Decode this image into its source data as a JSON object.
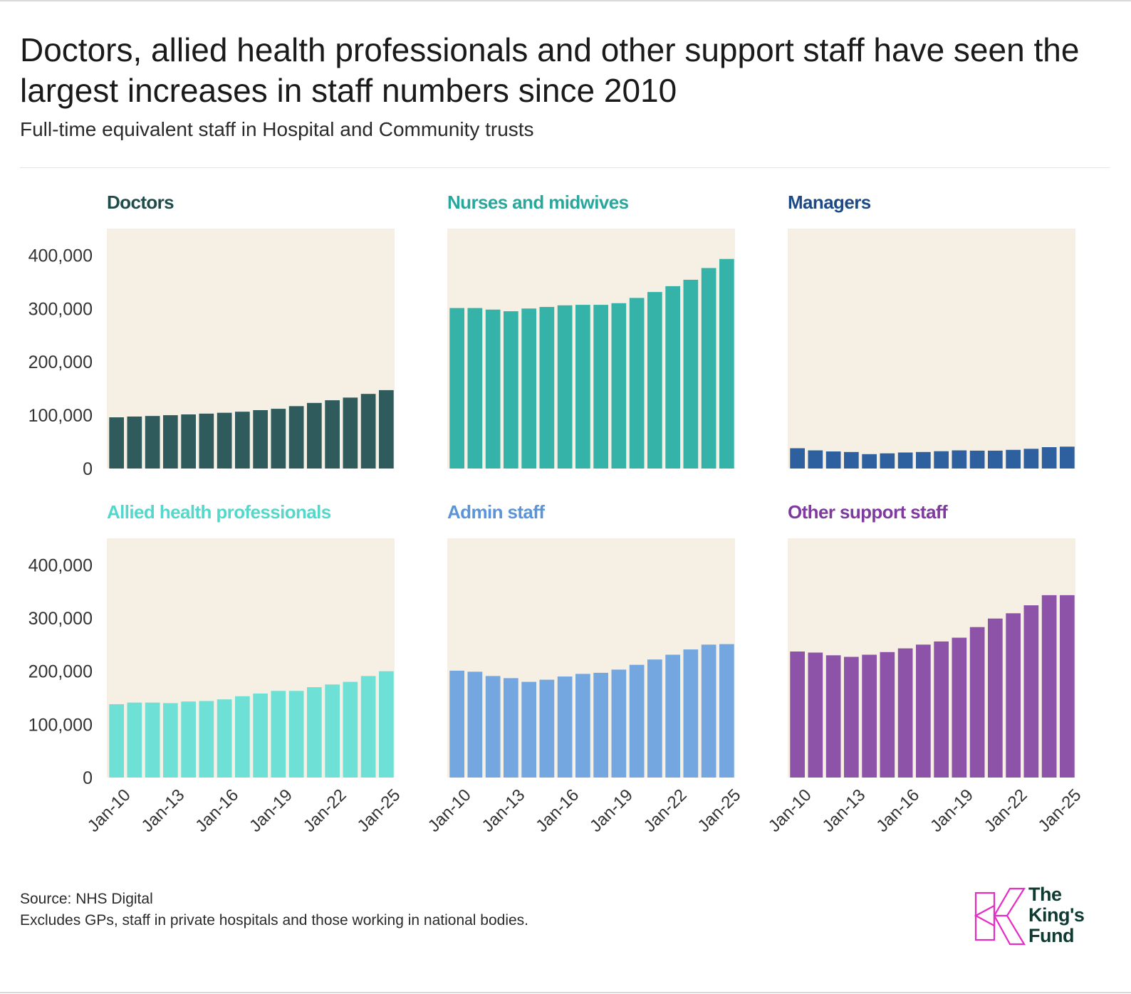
{
  "header": {
    "title": "Doctors, allied health professionals and other support staff have seen the largest increases in staff numbers since 2010",
    "subtitle": "Full-time equivalent staff in Hospital and Community trusts"
  },
  "footer": {
    "source": "Source: NHS Digital",
    "note": "Excludes GPs, staff in private hospitals and those working in national bodies."
  },
  "logo": {
    "line1": "The",
    "line2": "King's",
    "line3": "Fund",
    "icon": "kings-fund-k-logo",
    "color": "#e62cc4"
  },
  "panel_background": "#f5efe4",
  "chart_data": [
    {
      "type": "bar",
      "title": "Doctors",
      "color": "#2f5b5c",
      "title_color": "#1f4c4a",
      "x": [
        "Jan-10",
        "Jan-11",
        "Jan-12",
        "Jan-13",
        "Jan-14",
        "Jan-15",
        "Jan-16",
        "Jan-17",
        "Jan-18",
        "Jan-19",
        "Jan-20",
        "Jan-21",
        "Jan-22",
        "Jan-23",
        "Jan-24",
        "Jan-25"
      ],
      "x_tick_labels": [
        "Jan-10",
        "Jan-13",
        "Jan-16",
        "Jan-19",
        "Jan-22",
        "Jan-25"
      ],
      "values": [
        96000,
        97500,
        98500,
        100000,
        101500,
        103000,
        104500,
        106500,
        109500,
        112000,
        117000,
        123000,
        128000,
        133000,
        140000,
        147000
      ],
      "ylim": [
        0,
        450000
      ],
      "y_ticks": [
        0,
        100000,
        200000,
        300000,
        400000
      ],
      "y_tick_labels": [
        "0",
        "100,000",
        "200,000",
        "300,000",
        "400,000"
      ]
    },
    {
      "type": "bar",
      "title": "Nurses and midwives",
      "color": "#35b3a8",
      "title_color": "#2aa79c",
      "x": [
        "Jan-10",
        "Jan-11",
        "Jan-12",
        "Jan-13",
        "Jan-14",
        "Jan-15",
        "Jan-16",
        "Jan-17",
        "Jan-18",
        "Jan-19",
        "Jan-20",
        "Jan-21",
        "Jan-22",
        "Jan-23",
        "Jan-24",
        "Jan-25"
      ],
      "x_tick_labels": [
        "Jan-10",
        "Jan-13",
        "Jan-16",
        "Jan-19",
        "Jan-22",
        "Jan-25"
      ],
      "values": [
        301000,
        301000,
        298000,
        295000,
        300000,
        303000,
        306000,
        307000,
        307000,
        310000,
        320000,
        331000,
        342000,
        354000,
        376000,
        393000
      ],
      "ylim": [
        0,
        450000
      ],
      "y_ticks": [
        0,
        100000,
        200000,
        300000,
        400000
      ],
      "y_tick_labels": [
        "0",
        "100,000",
        "200,000",
        "300,000",
        "400,000"
      ]
    },
    {
      "type": "bar",
      "title": "Managers",
      "color": "#2e5f9e",
      "title_color": "#1d4a86",
      "x": [
        "Jan-10",
        "Jan-11",
        "Jan-12",
        "Jan-13",
        "Jan-14",
        "Jan-15",
        "Jan-16",
        "Jan-17",
        "Jan-18",
        "Jan-19",
        "Jan-20",
        "Jan-21",
        "Jan-22",
        "Jan-23",
        "Jan-24",
        "Jan-25"
      ],
      "x_tick_labels": [
        "Jan-10",
        "Jan-13",
        "Jan-16",
        "Jan-19",
        "Jan-22",
        "Jan-25"
      ],
      "values": [
        38000,
        34000,
        32000,
        31000,
        27000,
        28500,
        30000,
        31000,
        32500,
        34000,
        33500,
        33500,
        35000,
        37000,
        40000,
        41000
      ],
      "ylim": [
        0,
        450000
      ],
      "y_ticks": [
        0,
        100000,
        200000,
        300000,
        400000
      ],
      "y_tick_labels": [
        "0",
        "100,000",
        "200,000",
        "300,000",
        "400,000"
      ]
    },
    {
      "type": "bar",
      "title": "Allied health professionals",
      "color": "#6fe0d5",
      "title_color": "#55d8cb",
      "x": [
        "Jan-10",
        "Jan-11",
        "Jan-12",
        "Jan-13",
        "Jan-14",
        "Jan-15",
        "Jan-16",
        "Jan-17",
        "Jan-18",
        "Jan-19",
        "Jan-20",
        "Jan-21",
        "Jan-22",
        "Jan-23",
        "Jan-24",
        "Jan-25"
      ],
      "x_tick_labels": [
        "Jan-10",
        "Jan-13",
        "Jan-16",
        "Jan-19",
        "Jan-22",
        "Jan-25"
      ],
      "values": [
        138000,
        141000,
        141000,
        140000,
        143000,
        144000,
        147000,
        153000,
        158000,
        163000,
        163000,
        170000,
        175000,
        180000,
        191000,
        200000
      ],
      "ylim": [
        0,
        450000
      ],
      "y_ticks": [
        0,
        100000,
        200000,
        300000,
        400000
      ],
      "y_tick_labels": [
        "0",
        "100,000",
        "200,000",
        "300,000",
        "400,000"
      ]
    },
    {
      "type": "bar",
      "title": "Admin staff",
      "color": "#74a7e0",
      "title_color": "#5b95d8",
      "x": [
        "Jan-10",
        "Jan-11",
        "Jan-12",
        "Jan-13",
        "Jan-14",
        "Jan-15",
        "Jan-16",
        "Jan-17",
        "Jan-18",
        "Jan-19",
        "Jan-20",
        "Jan-21",
        "Jan-22",
        "Jan-23",
        "Jan-24",
        "Jan-25"
      ],
      "x_tick_labels": [
        "Jan-10",
        "Jan-13",
        "Jan-16",
        "Jan-19",
        "Jan-22",
        "Jan-25"
      ],
      "values": [
        201000,
        199000,
        191000,
        187000,
        180000,
        184000,
        190000,
        195000,
        197000,
        203000,
        212000,
        222000,
        231000,
        241000,
        250000,
        251000
      ],
      "ylim": [
        0,
        450000
      ],
      "y_ticks": [
        0,
        100000,
        200000,
        300000,
        400000
      ],
      "y_tick_labels": [
        "0",
        "100,000",
        "200,000",
        "300,000",
        "400,000"
      ]
    },
    {
      "type": "bar",
      "title": "Other support staff",
      "color": "#8d53a8",
      "title_color": "#7f3a9e",
      "x": [
        "Jan-10",
        "Jan-11",
        "Jan-12",
        "Jan-13",
        "Jan-14",
        "Jan-15",
        "Jan-16",
        "Jan-17",
        "Jan-18",
        "Jan-19",
        "Jan-20",
        "Jan-21",
        "Jan-22",
        "Jan-23",
        "Jan-24",
        "Jan-25"
      ],
      "x_tick_labels": [
        "Jan-10",
        "Jan-13",
        "Jan-16",
        "Jan-19",
        "Jan-22",
        "Jan-25"
      ],
      "values": [
        237000,
        235000,
        230000,
        227000,
        231000,
        236000,
        243000,
        250000,
        256000,
        263000,
        283000,
        299000,
        309000,
        324000,
        343000,
        343000
      ],
      "ylim": [
        0,
        450000
      ],
      "y_ticks": [
        0,
        100000,
        200000,
        300000,
        400000
      ],
      "y_tick_labels": [
        "0",
        "100,000",
        "200,000",
        "300,000",
        "400,000"
      ]
    }
  ]
}
